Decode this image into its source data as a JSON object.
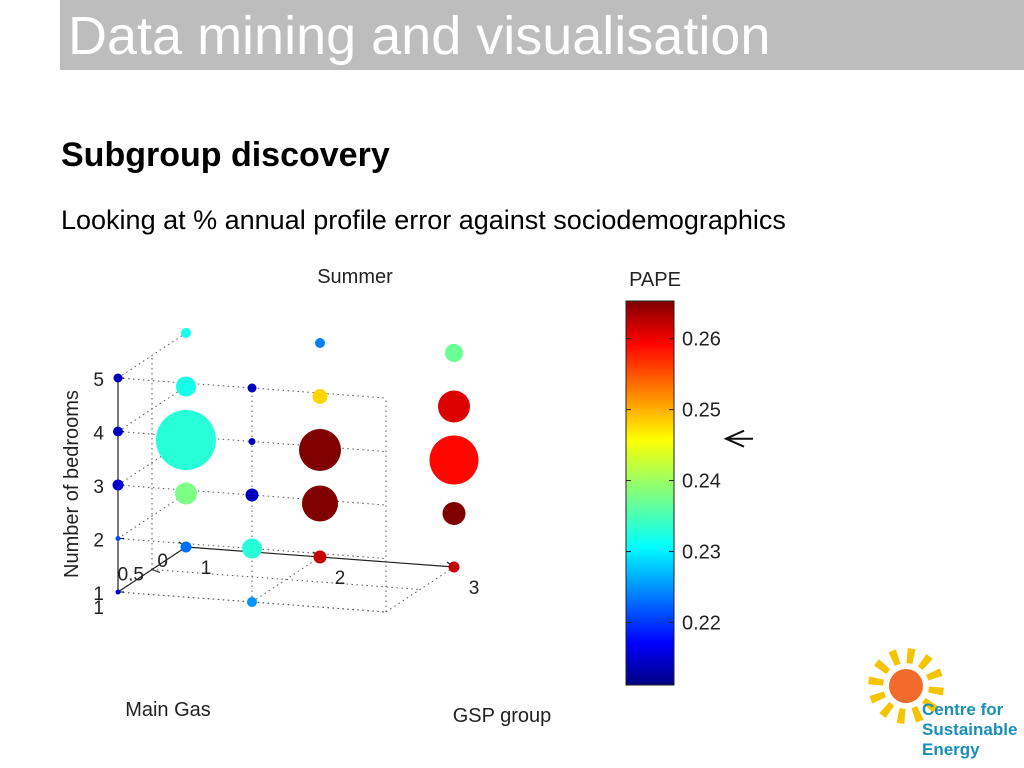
{
  "slide": {
    "title": "Data mining and visualisation",
    "subtitle": "Subgroup discovery",
    "body": "Looking at % annual profile error against sociodemographics"
  },
  "logo": {
    "line1": "Centre for",
    "line2": "Sustainable",
    "line3": "Energy",
    "sun_color": "#f26b2d",
    "ray_color": "#f5c400",
    "text_color": "#1b8fb5"
  },
  "chart_data": {
    "type": "scatter",
    "projection": "3d",
    "title": "Summer",
    "x_label": "GSP group",
    "y_label": "Main Gas",
    "z_label": "Number of bedrooms",
    "x_ticks": [
      "1",
      "2",
      "3"
    ],
    "y_ticks": [
      "0",
      "0.5",
      "1"
    ],
    "z_ticks": [
      "1",
      "2",
      "3",
      "4",
      "5"
    ],
    "colorbar": {
      "label": "PAPE",
      "min": 0.2112,
      "max": 0.2653,
      "ticks": [
        "0.22",
        "0.23",
        "0.24",
        "0.25",
        "0.26"
      ],
      "tick_values": [
        0.22,
        0.23,
        0.24,
        0.25,
        0.26
      ],
      "marker_value": 0.2459
    },
    "points": [
      {
        "gsp": 1,
        "gas": 0,
        "bedrooms": 1,
        "pape": 0.223,
        "size": 1.1
      },
      {
        "gsp": 1,
        "gas": 0,
        "bedrooms": 2,
        "pape": 0.238,
        "size": 2.2
      },
      {
        "gsp": 1,
        "gas": 0,
        "bedrooms": 3,
        "pape": 0.233,
        "size": 6.0
      },
      {
        "gsp": 1,
        "gas": 0,
        "bedrooms": 4,
        "pape": 0.232,
        "size": 2.0
      },
      {
        "gsp": 1,
        "gas": 0,
        "bedrooms": 5,
        "pape": 0.232,
        "size": 1.0
      },
      {
        "gsp": 1,
        "gas": 1,
        "bedrooms": 1,
        "pape": 0.215,
        "size": 0.5
      },
      {
        "gsp": 1,
        "gas": 1,
        "bedrooms": 2,
        "pape": 0.221,
        "size": 0.5
      },
      {
        "gsp": 1,
        "gas": 1,
        "bedrooms": 3,
        "pape": 0.215,
        "size": 1.1
      },
      {
        "gsp": 1,
        "gas": 1,
        "bedrooms": 4,
        "pape": 0.214,
        "size": 1.0
      },
      {
        "gsp": 1,
        "gas": 1,
        "bedrooms": 5,
        "pape": 0.214,
        "size": 0.9
      },
      {
        "gsp": 2,
        "gas": 0,
        "bedrooms": 1,
        "pape": 0.262,
        "size": 1.3
      },
      {
        "gsp": 2,
        "gas": 0,
        "bedrooms": 2,
        "pape": 0.266,
        "size": 3.6
      },
      {
        "gsp": 2,
        "gas": 0,
        "bedrooms": 3,
        "pape": 0.266,
        "size": 4.2
      },
      {
        "gsp": 2,
        "gas": 0,
        "bedrooms": 4,
        "pape": 0.248,
        "size": 1.5
      },
      {
        "gsp": 2,
        "gas": 0,
        "bedrooms": 5,
        "pape": 0.224,
        "size": 1.0
      },
      {
        "gsp": 2,
        "gas": 1,
        "bedrooms": 1,
        "pape": 0.225,
        "size": 1.0
      },
      {
        "gsp": 2,
        "gas": 1,
        "bedrooms": 2,
        "pape": 0.233,
        "size": 2.0
      },
      {
        "gsp": 2,
        "gas": 1,
        "bedrooms": 3,
        "pape": 0.214,
        "size": 1.3
      },
      {
        "gsp": 2,
        "gas": 1,
        "bedrooms": 4,
        "pape": 0.214,
        "size": 0.7
      },
      {
        "gsp": 2,
        "gas": 1,
        "bedrooms": 5,
        "pape": 0.214,
        "size": 0.9
      },
      {
        "gsp": 3,
        "gas": 0,
        "bedrooms": 1,
        "pape": 0.262,
        "size": 1.1
      },
      {
        "gsp": 3,
        "gas": 0,
        "bedrooms": 2,
        "pape": 0.266,
        "size": 2.3
      },
      {
        "gsp": 3,
        "gas": 0,
        "bedrooms": 3,
        "pape": 0.259,
        "size": 4.9
      },
      {
        "gsp": 3,
        "gas": 0,
        "bedrooms": 4,
        "pape": 0.261,
        "size": 3.2
      },
      {
        "gsp": 3,
        "gas": 0,
        "bedrooms": 5,
        "pape": 0.237,
        "size": 1.8
      }
    ]
  }
}
